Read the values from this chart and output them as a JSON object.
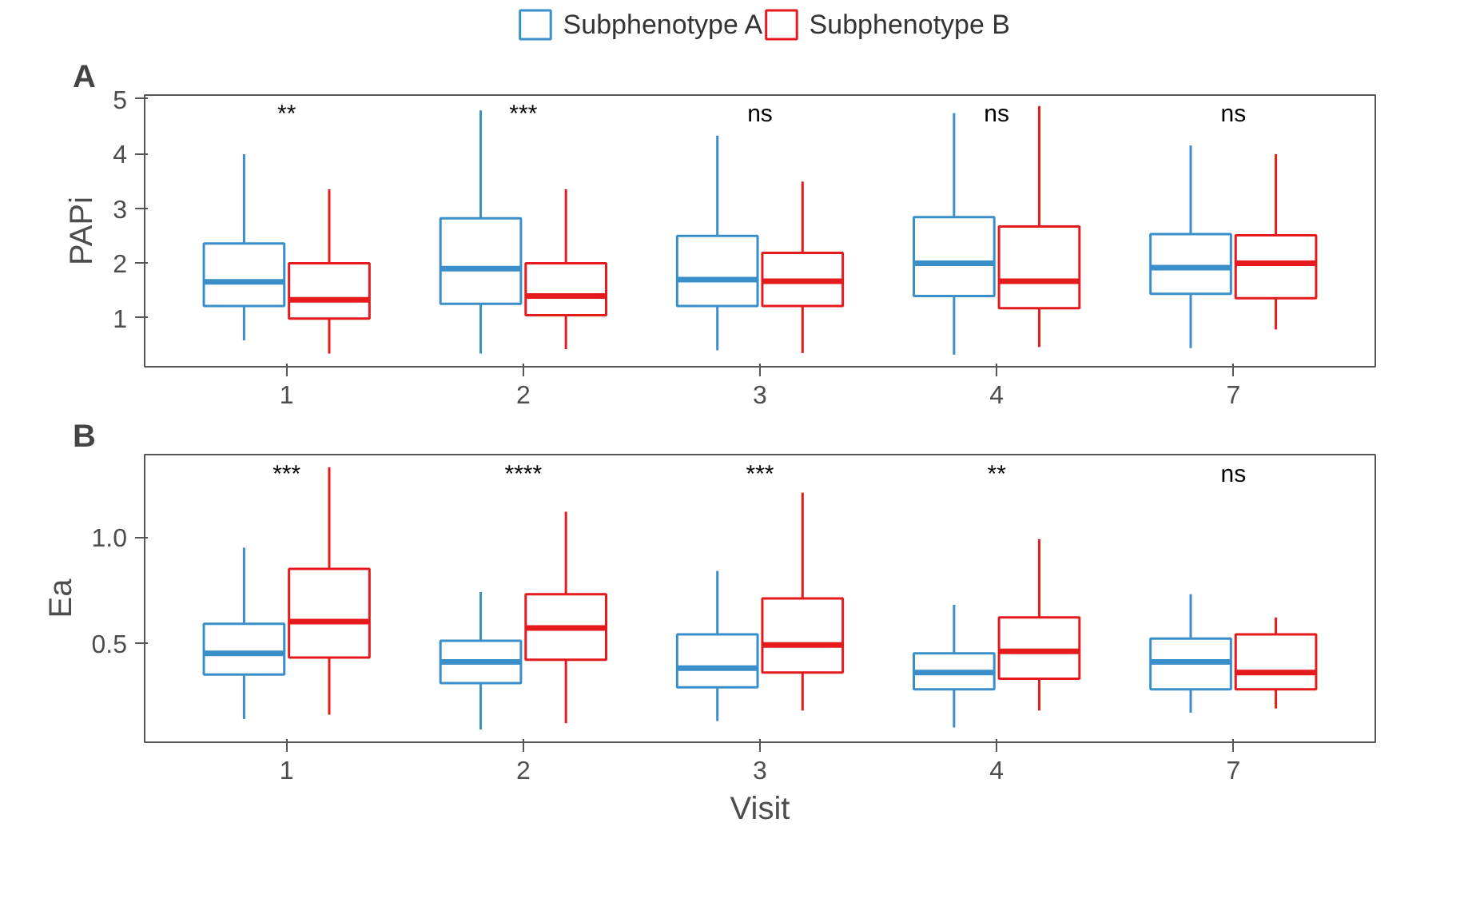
{
  "chart_data": [
    {
      "type": "box",
      "title": "A",
      "ylabel": "PAPi",
      "categories": [
        "1",
        "2",
        "3",
        "4",
        "7"
      ],
      "ylim": [
        0.11,
        5.07
      ],
      "yticks": [
        1,
        2,
        3,
        4,
        5
      ],
      "grid": false,
      "legend": "top",
      "annotations": [
        "**",
        "***",
        "ns",
        "ns",
        "ns"
      ],
      "series": [
        {
          "name": "Subphenotype A",
          "color": "#3a8fc9",
          "boxes": [
            {
              "low": 0.59,
              "q1": 1.22,
              "median": 1.66,
              "q3": 2.36,
              "high": 3.99
            },
            {
              "low": 0.35,
              "q1": 1.26,
              "median": 1.9,
              "q3": 2.82,
              "high": 4.79
            },
            {
              "low": 0.41,
              "q1": 1.22,
              "median": 1.7,
              "q3": 2.5,
              "high": 4.33
            },
            {
              "low": 0.33,
              "q1": 1.4,
              "median": 2.0,
              "q3": 2.84,
              "high": 4.74
            },
            {
              "low": 0.45,
              "q1": 1.44,
              "median": 1.92,
              "q3": 2.53,
              "high": 4.15
            }
          ]
        },
        {
          "name": "Subphenotype B",
          "color": "#e41a1c",
          "boxes": [
            {
              "low": 0.35,
              "q1": 0.99,
              "median": 1.33,
              "q3": 2.0,
              "high": 3.35
            },
            {
              "low": 0.43,
              "q1": 1.05,
              "median": 1.4,
              "q3": 2.0,
              "high": 3.35
            },
            {
              "low": 0.36,
              "q1": 1.22,
              "median": 1.67,
              "q3": 2.19,
              "high": 3.49
            },
            {
              "low": 0.47,
              "q1": 1.18,
              "median": 1.67,
              "q3": 2.67,
              "high": 4.87
            },
            {
              "low": 0.79,
              "q1": 1.36,
              "median": 2.0,
              "q3": 2.51,
              "high": 3.99
            }
          ]
        }
      ]
    },
    {
      "type": "box",
      "title": "B",
      "ylabel": "Ea",
      "xlabel": "Visit",
      "categories": [
        "1",
        "2",
        "3",
        "4",
        "7"
      ],
      "ylim": [
        0.03,
        1.39
      ],
      "yticks": [
        {
          "value": 0.5,
          "label": "0.5"
        },
        {
          "value": 1.0,
          "label": "1.0"
        }
      ],
      "grid": false,
      "annotations": [
        "***",
        "****",
        "***",
        "**",
        "ns"
      ],
      "series": [
        {
          "color": "#3a8fc9",
          "boxes": [
            {
              "low": 0.14,
              "q1": 0.35,
              "median": 0.45,
              "q3": 0.59,
              "high": 0.95
            },
            {
              "low": 0.09,
              "q1": 0.31,
              "median": 0.41,
              "q3": 0.51,
              "high": 0.74
            },
            {
              "low": 0.13,
              "q1": 0.29,
              "median": 0.38,
              "q3": 0.54,
              "high": 0.84
            },
            {
              "low": 0.1,
              "q1": 0.28,
              "median": 0.36,
              "q3": 0.45,
              "high": 0.68
            },
            {
              "low": 0.17,
              "q1": 0.28,
              "median": 0.41,
              "q3": 0.52,
              "high": 0.73
            }
          ]
        },
        {
          "color": "#e41a1c",
          "boxes": [
            {
              "low": 0.16,
              "q1": 0.43,
              "median": 0.6,
              "q3": 0.85,
              "high": 1.33
            },
            {
              "low": 0.12,
              "q1": 0.42,
              "median": 0.57,
              "q3": 0.73,
              "high": 1.12
            },
            {
              "low": 0.18,
              "q1": 0.36,
              "median": 0.49,
              "q3": 0.71,
              "high": 1.21
            },
            {
              "low": 0.18,
              "q1": 0.33,
              "median": 0.46,
              "q3": 0.62,
              "high": 0.99
            },
            {
              "low": 0.19,
              "q1": 0.28,
              "median": 0.36,
              "q3": 0.54,
              "high": 0.62
            }
          ]
        }
      ]
    }
  ]
}
